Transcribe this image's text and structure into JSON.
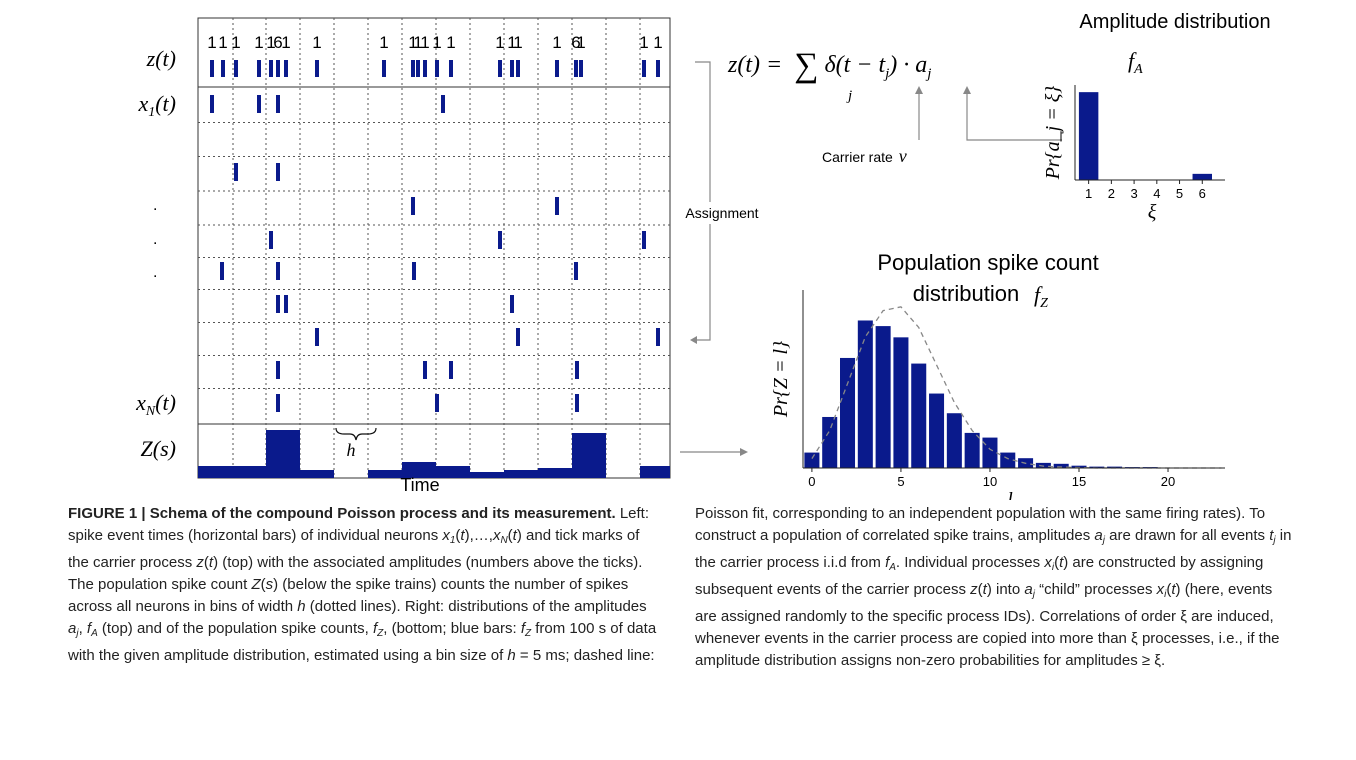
{
  "figure": {
    "row_labels": {
      "z": {
        "base": "z",
        "rest": "(t)"
      },
      "x1": {
        "base": "x",
        "sub": "1",
        "rest": "(t)"
      },
      "dots": ".",
      "xN": {
        "base": "x",
        "sub": "N",
        "rest": "(t)"
      },
      "Z": {
        "base": "Z",
        "rest": "(s)"
      }
    },
    "amplitudes": [
      1,
      1,
      1,
      1,
      1,
      6,
      1,
      1,
      1,
      1,
      1,
      1,
      1,
      1,
      1,
      1,
      1,
      1,
      6,
      1,
      1,
      1
    ],
    "bin_label": "h",
    "time_label": "Time",
    "assignment_label": "Assignment",
    "equation": {
      "lhs": "z(t) = ",
      "sum": "∑",
      "index": "j",
      "a": "δ(t − t",
      "sub1": "j",
      "b": ") · a",
      "sub2": "j"
    },
    "carrier_rate": {
      "text": "Carrier rate",
      "symbol": "ν"
    }
  },
  "chart_data": [
    {
      "type": "bar",
      "title": "Amplitude distribution",
      "subtitle": {
        "base": "f",
        "sub": "A"
      },
      "ylabel": "Pr{a_j = ξ}",
      "xlabel": "ξ",
      "x": [
        1,
        6
      ],
      "values": [
        0.93,
        0.07
      ],
      "color": "#0a1a8c",
      "xlim": [
        0.4,
        7
      ],
      "ylim": [
        0,
        1
      ],
      "xticks": [
        1,
        2,
        3,
        4,
        5,
        6
      ]
    },
    {
      "type": "bar",
      "title": "Population spike count",
      "title2": "distribution",
      "subtitle": {
        "base": "f",
        "sub": "Z"
      },
      "ylabel": "Pr{Z = l}",
      "xlabel": "l",
      "x": [
        0,
        1,
        2,
        3,
        4,
        5,
        6,
        7,
        8,
        9,
        10,
        11,
        12,
        13,
        14,
        15,
        16,
        17,
        18,
        19,
        20,
        21,
        22,
        23
      ],
      "values": [
        0.017,
        0.055,
        0.118,
        0.158,
        0.152,
        0.14,
        0.112,
        0.08,
        0.059,
        0.038,
        0.033,
        0.017,
        0.011,
        0.006,
        0.005,
        0.003,
        0.002,
        0.002,
        0.0015,
        0.0015,
        0.001,
        0.001,
        0.001,
        0.001
      ],
      "color": "#0a1a8c",
      "series": [
        {
          "name": "Poisson fit",
          "color": "#888888",
          "values": [
            0.01,
            0.04,
            0.09,
            0.14,
            0.168,
            0.172,
            0.15,
            0.11,
            0.07,
            0.04,
            0.02,
            0.01,
            0.005,
            0.002,
            0.001,
            0.0005,
            0,
            0,
            0,
            0,
            0,
            0,
            0,
            0
          ]
        }
      ],
      "xlim": [
        -0.5,
        23.2
      ],
      "ylim": [
        0,
        0.19
      ],
      "xticks": [
        0,
        5,
        10,
        15,
        20
      ]
    }
  ],
  "caption": {
    "left": [
      {
        "t": "FIGURE 1 | Schema of the compound Poisson process and its measurement.",
        "s": "b"
      },
      {
        "t": " Left: spike event times (horizontal bars) of individual neurons "
      },
      {
        "t": "x",
        "s": "i"
      },
      {
        "t": "1",
        "s": "sub"
      },
      {
        "t": "("
      },
      {
        "t": "t",
        "s": "i"
      },
      {
        "t": "),…,"
      },
      {
        "t": "x",
        "s": "i"
      },
      {
        "t": "N",
        "s": "sub"
      },
      {
        "t": "("
      },
      {
        "t": "t",
        "s": "i"
      },
      {
        "t": ") and tick marks of the carrier process "
      },
      {
        "t": "z",
        "s": "i"
      },
      {
        "t": "("
      },
      {
        "t": "t",
        "s": "i"
      },
      {
        "t": ") (top) with the associated amplitudes (numbers above the ticks). The population spike count "
      },
      {
        "t": "Z",
        "s": "i"
      },
      {
        "t": "("
      },
      {
        "t": "s",
        "s": "i"
      },
      {
        "t": ") (below the spike trains) counts the number of spikes across all neurons in bins of width "
      },
      {
        "t": "h",
        "s": "i"
      },
      {
        "t": " (dotted lines). Right: distributions of the amplitudes "
      },
      {
        "t": "a",
        "s": "i"
      },
      {
        "t": "j",
        "s": "sub"
      },
      {
        "t": ", "
      },
      {
        "t": "f",
        "s": "i"
      },
      {
        "t": "A",
        "s": "sub"
      },
      {
        "t": " (top) and of the population spike counts, "
      },
      {
        "t": "f",
        "s": "i"
      },
      {
        "t": "Z",
        "s": "sub"
      },
      {
        "t": ", (bottom; blue bars: "
      },
      {
        "t": "f",
        "s": "i"
      },
      {
        "t": "Z",
        "s": "sub"
      },
      {
        "t": " from 100 s of data with the given amplitude distribution, estimated using a bin size of "
      },
      {
        "t": "h",
        "s": "i"
      },
      {
        "t": " = 5 ms; dashed line:"
      }
    ],
    "right": [
      {
        "t": "Poisson fit, corresponding to an independent population with the same firing rates). To construct a population of correlated spike trains, amplitudes "
      },
      {
        "t": "a",
        "s": "i"
      },
      {
        "t": "j",
        "s": "sub"
      },
      {
        "t": " are drawn for all events "
      },
      {
        "t": "t",
        "s": "i"
      },
      {
        "t": "j",
        "s": "sub"
      },
      {
        "t": " in the carrier process i.i.d from "
      },
      {
        "t": "f",
        "s": "i"
      },
      {
        "t": "A",
        "s": "sub"
      },
      {
        "t": ". Individual processes "
      },
      {
        "t": "x",
        "s": "i"
      },
      {
        "t": "i",
        "s": "sub"
      },
      {
        "t": "("
      },
      {
        "t": "t",
        "s": "i"
      },
      {
        "t": ") are constructed by assigning subsequent events of the carrier process "
      },
      {
        "t": "z",
        "s": "i"
      },
      {
        "t": "("
      },
      {
        "t": "t",
        "s": "i"
      },
      {
        "t": ") into "
      },
      {
        "t": "a",
        "s": "i"
      },
      {
        "t": "j",
        "s": "sub"
      },
      {
        "t": " “child” processes "
      },
      {
        "t": "x",
        "s": "i"
      },
      {
        "t": "i",
        "s": "sub"
      },
      {
        "t": "("
      },
      {
        "t": "t",
        "s": "i"
      },
      {
        "t": ") (here, events are assigned randomly to the specific process IDs). Correlations of order ξ are induced, whenever events in the carrier process are copied into more than ξ processes, i.e., if the amplitude distribution assigns non-zero probabilities for amplitudes ≥ ξ."
      }
    ]
  }
}
